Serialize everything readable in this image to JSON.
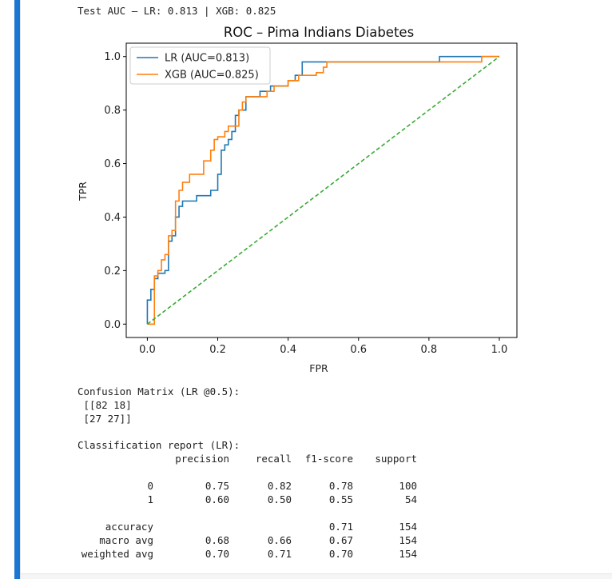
{
  "output": {
    "test_auc_line": "Test AUC — LR: 0.813 | XGB: 0.825",
    "confusion_title": "Confusion Matrix (LR @0.5):",
    "confusion_rows": [
      " [[82 18]",
      " [27 27]]"
    ],
    "report_title": "Classification report (LR):",
    "report_headers": [
      "",
      "precision",
      "recall",
      "f1-score",
      "support"
    ],
    "report_rows": [
      [
        "0",
        "0.75",
        "0.82",
        "0.78",
        "100"
      ],
      [
        "1",
        "0.60",
        "0.50",
        "0.55",
        "54"
      ]
    ],
    "report_summary": [
      [
        "accuracy",
        "",
        "",
        "0.71",
        "154"
      ],
      [
        "macro avg",
        "0.68",
        "0.66",
        "0.67",
        "154"
      ],
      [
        "weighted avg",
        "0.70",
        "0.71",
        "0.70",
        "154"
      ]
    ]
  },
  "chart_data": {
    "type": "line",
    "title": "ROC – Pima Indians Diabetes",
    "xlabel": "FPR",
    "ylabel": "TPR",
    "xlim": [
      -0.06,
      1.05
    ],
    "ylim": [
      -0.05,
      1.05
    ],
    "xticks": [
      0.0,
      0.2,
      0.4,
      0.6,
      0.8,
      1.0
    ],
    "yticks": [
      0.0,
      0.2,
      0.4,
      0.6,
      0.8,
      1.0
    ],
    "xtick_labels": [
      "0.0",
      "0.2",
      "0.4",
      "0.6",
      "0.8",
      "1.0"
    ],
    "ytick_labels": [
      "0.0",
      "0.2",
      "0.4",
      "0.6",
      "0.8",
      "1.0"
    ],
    "grid": false,
    "legend_position": "top-left",
    "series": [
      {
        "name": "LR (AUC=0.813)",
        "color": "#1f77b4",
        "style": "solid",
        "x": [
          0.0,
          0.0,
          0.01,
          0.01,
          0.02,
          0.02,
          0.03,
          0.03,
          0.05,
          0.05,
          0.06,
          0.06,
          0.07,
          0.07,
          0.08,
          0.08,
          0.09,
          0.09,
          0.1,
          0.1,
          0.14,
          0.14,
          0.18,
          0.18,
          0.2,
          0.2,
          0.21,
          0.21,
          0.22,
          0.22,
          0.23,
          0.23,
          0.24,
          0.24,
          0.25,
          0.25,
          0.26,
          0.26,
          0.28,
          0.28,
          0.32,
          0.32,
          0.35,
          0.35,
          0.4,
          0.4,
          0.42,
          0.42,
          0.44,
          0.44,
          0.48,
          0.48,
          0.56,
          0.56,
          0.68,
          0.68,
          0.83,
          0.83,
          0.95,
          0.95,
          1.0
        ],
        "y": [
          0.0,
          0.09,
          0.09,
          0.13,
          0.13,
          0.17,
          0.17,
          0.19,
          0.19,
          0.2,
          0.2,
          0.31,
          0.31,
          0.33,
          0.33,
          0.4,
          0.4,
          0.44,
          0.44,
          0.46,
          0.46,
          0.48,
          0.48,
          0.5,
          0.5,
          0.56,
          0.56,
          0.65,
          0.65,
          0.67,
          0.67,
          0.69,
          0.69,
          0.72,
          0.72,
          0.78,
          0.78,
          0.8,
          0.8,
          0.85,
          0.85,
          0.87,
          0.87,
          0.89,
          0.89,
          0.91,
          0.91,
          0.93,
          0.93,
          0.98,
          0.98,
          0.98,
          0.98,
          0.98,
          0.98,
          0.98,
          0.98,
          1.0,
          1.0,
          1.0,
          1.0
        ]
      },
      {
        "name": "XGB (AUC=0.825)",
        "color": "#ff7f0e",
        "style": "solid",
        "x": [
          0.0,
          0.02,
          0.02,
          0.03,
          0.03,
          0.04,
          0.04,
          0.05,
          0.05,
          0.06,
          0.06,
          0.07,
          0.07,
          0.08,
          0.08,
          0.09,
          0.09,
          0.1,
          0.1,
          0.12,
          0.12,
          0.16,
          0.16,
          0.18,
          0.18,
          0.19,
          0.19,
          0.2,
          0.2,
          0.22,
          0.22,
          0.23,
          0.23,
          0.26,
          0.26,
          0.27,
          0.27,
          0.28,
          0.28,
          0.34,
          0.34,
          0.36,
          0.36,
          0.4,
          0.4,
          0.43,
          0.43,
          0.48,
          0.48,
          0.5,
          0.5,
          0.51,
          0.51,
          0.68,
          0.68,
          0.95,
          0.95,
          1.0
        ],
        "y": [
          0.0,
          0.0,
          0.18,
          0.18,
          0.2,
          0.2,
          0.24,
          0.24,
          0.26,
          0.26,
          0.33,
          0.33,
          0.35,
          0.35,
          0.46,
          0.46,
          0.5,
          0.5,
          0.53,
          0.53,
          0.56,
          0.56,
          0.61,
          0.61,
          0.65,
          0.65,
          0.69,
          0.69,
          0.7,
          0.7,
          0.72,
          0.72,
          0.74,
          0.74,
          0.8,
          0.8,
          0.83,
          0.83,
          0.85,
          0.85,
          0.87,
          0.87,
          0.89,
          0.89,
          0.91,
          0.91,
          0.93,
          0.93,
          0.94,
          0.94,
          0.96,
          0.96,
          0.98,
          0.98,
          0.98,
          0.98,
          1.0,
          1.0
        ]
      },
      {
        "color": "#3aaa35",
        "style": "dashed",
        "x": [
          0.0,
          1.0
        ],
        "y": [
          0.0,
          1.0
        ]
      }
    ]
  }
}
